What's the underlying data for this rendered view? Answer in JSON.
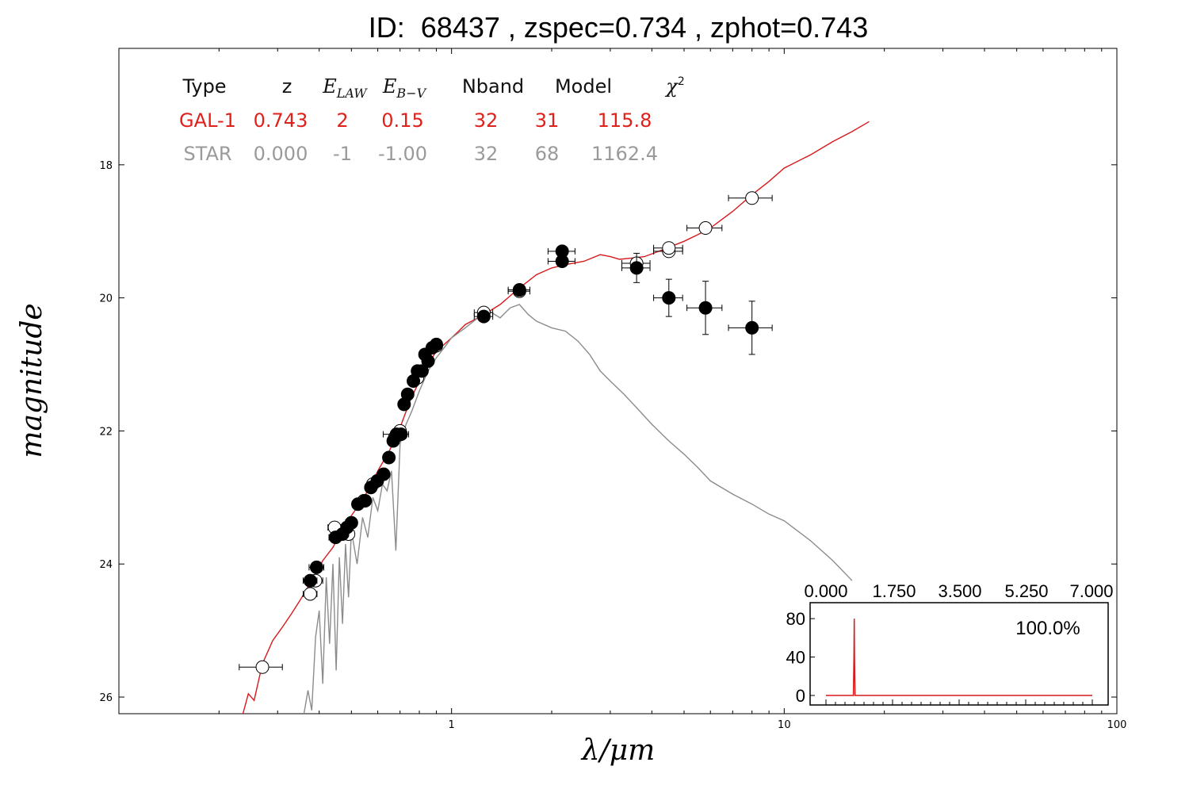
{
  "chart_data": {
    "type": "scatter",
    "title": "ID:  68437 , zspec=0.734 , zphot=0.743",
    "xlabel": "λ/μm",
    "ylabel": "magnitude",
    "x_scale": "log",
    "xlim": [
      0.1,
      100
    ],
    "ylim": [
      26.25,
      16.25
    ],
    "x_ticks": [
      1,
      10,
      100
    ],
    "x_tick_labels": [
      "1",
      "10",
      "100"
    ],
    "y_ticks": [
      18,
      20,
      22,
      24,
      26
    ],
    "y_tick_labels": [
      "18",
      "20",
      "22",
      "24",
      "26"
    ],
    "fit_table": {
      "headers": [
        "Type",
        "z",
        "E_LAW",
        "E_B−V",
        "Nband",
        "Model",
        "χ²"
      ],
      "rows": [
        {
          "cells": [
            "GAL-1",
            "0.743",
            "2",
            "0.15",
            "32",
            "31",
            "115.8"
          ],
          "color": "#e0201b"
        },
        {
          "cells": [
            "STAR",
            "0.000",
            "-1",
            "-1.00",
            "32",
            "68",
            "1162.4"
          ],
          "color": "#9a9a9a"
        }
      ]
    },
    "series": [
      {
        "kind": "galaxy_model",
        "color": "#d7191c",
        "x": [
          0.236,
          0.245,
          0.255,
          0.27,
          0.29,
          0.31,
          0.33,
          0.35,
          0.38,
          0.41,
          0.44,
          0.48,
          0.52,
          0.56,
          0.6,
          0.65,
          0.7,
          0.75,
          0.8,
          0.85,
          0.9,
          0.95,
          1.0,
          1.05,
          1.1,
          1.15,
          1.2,
          1.25,
          1.3,
          1.4,
          1.5,
          1.6,
          1.7,
          1.8,
          2.0,
          2.2,
          2.5,
          2.8,
          3.0,
          3.2,
          3.5,
          3.8,
          4.2,
          4.6,
          5.0,
          5.5,
          6.0,
          7.0,
          8.0,
          9.0,
          10.0,
          12.0,
          14.0,
          16.0,
          18.0
        ],
        "y": [
          26.25,
          25.95,
          26.05,
          25.5,
          25.15,
          24.95,
          24.75,
          24.55,
          24.25,
          23.95,
          23.75,
          23.4,
          23.15,
          22.9,
          22.6,
          22.3,
          21.95,
          21.55,
          21.25,
          21.0,
          20.8,
          20.7,
          20.6,
          20.5,
          20.4,
          20.35,
          20.3,
          20.25,
          20.2,
          20.1,
          19.97,
          19.85,
          19.75,
          19.65,
          19.55,
          19.5,
          19.45,
          19.35,
          19.38,
          19.42,
          19.4,
          19.38,
          19.3,
          19.22,
          19.15,
          19.05,
          18.95,
          18.7,
          18.45,
          18.25,
          18.05,
          17.85,
          17.65,
          17.5,
          17.35
        ]
      },
      {
        "kind": "star_model",
        "color": "#8c8c8c",
        "x": [
          0.36,
          0.37,
          0.38,
          0.39,
          0.4,
          0.41,
          0.42,
          0.43,
          0.44,
          0.45,
          0.46,
          0.47,
          0.48,
          0.49,
          0.5,
          0.52,
          0.54,
          0.56,
          0.58,
          0.6,
          0.62,
          0.64,
          0.66,
          0.68,
          0.7,
          0.73,
          0.76,
          0.8,
          0.85,
          0.9,
          0.95,
          1.0,
          1.1,
          1.2,
          1.3,
          1.4,
          1.5,
          1.6,
          1.7,
          1.8,
          2.0,
          2.2,
          2.4,
          2.6,
          2.8,
          3.0,
          3.3,
          3.6,
          4.0,
          4.5,
          5.0,
          5.5,
          6.0,
          7.0,
          8.0,
          9.0,
          10.0,
          12.0,
          14.0,
          16.0
        ],
        "y": [
          26.25,
          25.9,
          26.2,
          25.1,
          24.7,
          25.8,
          24.2,
          25.2,
          24.0,
          25.6,
          23.9,
          24.9,
          23.7,
          24.5,
          23.5,
          24.0,
          23.3,
          23.6,
          23.0,
          23.2,
          22.8,
          22.9,
          22.6,
          23.8,
          22.2,
          21.9,
          21.7,
          21.4,
          21.1,
          20.9,
          20.75,
          20.6,
          20.45,
          20.3,
          20.2,
          20.3,
          20.15,
          20.1,
          20.25,
          20.35,
          20.45,
          20.5,
          20.65,
          20.85,
          21.1,
          21.25,
          21.45,
          21.65,
          21.9,
          22.15,
          22.35,
          22.55,
          22.75,
          22.95,
          23.1,
          23.25,
          23.35,
          23.65,
          23.95,
          24.25
        ]
      },
      {
        "kind": "observed",
        "color": "#000000",
        "points": [
          {
            "x": 0.376,
            "y": 24.25,
            "xerr": 0.018,
            "yerr": 0.05
          },
          {
            "x": 0.393,
            "y": 24.05,
            "xerr": 0.02,
            "yerr": 0.05
          },
          {
            "x": 0.448,
            "y": 23.6,
            "xerr": 0.02,
            "yerr": 0.05
          },
          {
            "x": 0.47,
            "y": 23.55,
            "xerr": 0.02,
            "yerr": 0.05
          },
          {
            "x": 0.485,
            "y": 23.45,
            "xerr": 0.02,
            "yerr": 0.05
          },
          {
            "x": 0.5,
            "y": 23.38,
            "xerr": 0.02,
            "yerr": 0.05
          },
          {
            "x": 0.523,
            "y": 23.1,
            "xerr": 0.02,
            "yerr": 0.05
          },
          {
            "x": 0.55,
            "y": 23.05,
            "xerr": 0.02,
            "yerr": 0.05
          },
          {
            "x": 0.572,
            "y": 22.85,
            "xerr": 0.02,
            "yerr": 0.05
          },
          {
            "x": 0.598,
            "y": 22.75,
            "xerr": 0.02,
            "yerr": 0.05
          },
          {
            "x": 0.625,
            "y": 22.65,
            "xerr": 0.02,
            "yerr": 0.05
          },
          {
            "x": 0.648,
            "y": 22.4,
            "xerr": 0.02,
            "yerr": 0.05
          },
          {
            "x": 0.668,
            "y": 22.15,
            "xerr": 0.02,
            "yerr": 0.05
          },
          {
            "x": 0.683,
            "y": 22.05,
            "xerr": 0.06,
            "yerr": 0.05
          },
          {
            "x": 0.705,
            "y": 22.05,
            "xerr": 0.02,
            "yerr": 0.05
          },
          {
            "x": 0.72,
            "y": 21.6,
            "xerr": 0.02,
            "yerr": 0.05
          },
          {
            "x": 0.738,
            "y": 21.45,
            "xerr": 0.02,
            "yerr": 0.05
          },
          {
            "x": 0.768,
            "y": 21.25,
            "xerr": 0.02,
            "yerr": 0.05
          },
          {
            "x": 0.79,
            "y": 21.1,
            "xerr": 0.02,
            "yerr": 0.05
          },
          {
            "x": 0.815,
            "y": 21.1,
            "xerr": 0.02,
            "yerr": 0.05
          },
          {
            "x": 0.832,
            "y": 20.85,
            "xerr": 0.02,
            "yerr": 0.05
          },
          {
            "x": 0.85,
            "y": 20.95,
            "xerr": 0.02,
            "yerr": 0.05
          },
          {
            "x": 0.875,
            "y": 20.75,
            "xerr": 0.02,
            "yerr": 0.05
          },
          {
            "x": 0.9,
            "y": 20.7,
            "xerr": 0.02,
            "yerr": 0.05
          },
          {
            "x": 1.25,
            "y": 20.28,
            "xerr": 0.08,
            "yerr": 0.05
          },
          {
            "x": 1.6,
            "y": 19.88,
            "xerr": 0.12,
            "yerr": 0.05
          },
          {
            "x": 2.15,
            "y": 19.3,
            "xerr": 0.2,
            "yerr": 0.05
          },
          {
            "x": 2.15,
            "y": 19.45,
            "xerr": 0.2,
            "yerr": 0.05
          },
          {
            "x": 3.6,
            "y": 19.55,
            "xerr": 0.35,
            "yerr": 0.22
          },
          {
            "x": 4.5,
            "y": 20.0,
            "xerr": 0.45,
            "yerr": 0.28
          },
          {
            "x": 5.8,
            "y": 20.15,
            "xerr": 0.7,
            "yerr": 0.4
          },
          {
            "x": 8.0,
            "y": 20.45,
            "xerr": 1.2,
            "yerr": 0.4
          }
        ]
      },
      {
        "kind": "model_magnitudes",
        "color": "#000000",
        "points": [
          {
            "x": 0.27,
            "y": 25.55,
            "xerr": 0.04
          },
          {
            "x": 0.376,
            "y": 24.45,
            "xerr": 0.018
          },
          {
            "x": 0.39,
            "y": 24.25,
            "xerr": 0.02
          },
          {
            "x": 0.445,
            "y": 23.45,
            "xerr": 0.02
          },
          {
            "x": 0.49,
            "y": 23.55,
            "xerr": 0.02
          },
          {
            "x": 0.545,
            "y": 23.05,
            "xerr": 0.02
          },
          {
            "x": 0.58,
            "y": 22.8,
            "xerr": 0.02
          },
          {
            "x": 0.675,
            "y": 22.1,
            "xerr": 0.02
          },
          {
            "x": 0.7,
            "y": 22.0,
            "xerr": 0.02
          },
          {
            "x": 0.79,
            "y": 21.2,
            "xerr": 0.02
          },
          {
            "x": 0.9,
            "y": 20.72,
            "xerr": 0.02
          },
          {
            "x": 1.25,
            "y": 20.22,
            "xerr": 0.08
          },
          {
            "x": 1.6,
            "y": 19.9,
            "xerr": 0.12
          },
          {
            "x": 3.6,
            "y": 19.48,
            "xerr": 0.35
          },
          {
            "x": 4.5,
            "y": 19.3,
            "xerr": 0.45
          },
          {
            "x": 4.5,
            "y": 19.25,
            "xerr": 0.45
          },
          {
            "x": 5.8,
            "y": 18.95,
            "xerr": 0.7
          },
          {
            "x": 8.0,
            "y": 18.5,
            "xerr": 1.2
          }
        ]
      }
    ],
    "inset": {
      "type": "line",
      "color": "#d7191c",
      "xlim": [
        0.0,
        7.0
      ],
      "ylim": [
        0,
        90
      ],
      "x_tick_labels": [
        "0.000",
        "1.750",
        "3.500",
        "5.250",
        "7.000"
      ],
      "x_ticks": [
        0.0,
        1.75,
        3.5,
        5.25,
        7.0
      ],
      "y_tick_labels": [
        "80",
        "40",
        "0"
      ],
      "y_ticks": [
        80,
        40,
        0
      ],
      "annotation": "100.0%",
      "x": [
        0.0,
        0.7,
        0.72,
        0.735,
        0.743,
        0.75,
        0.765,
        0.78,
        7.0
      ],
      "y": [
        0,
        0,
        0,
        40,
        80,
        40,
        0,
        0,
        0
      ]
    }
  }
}
